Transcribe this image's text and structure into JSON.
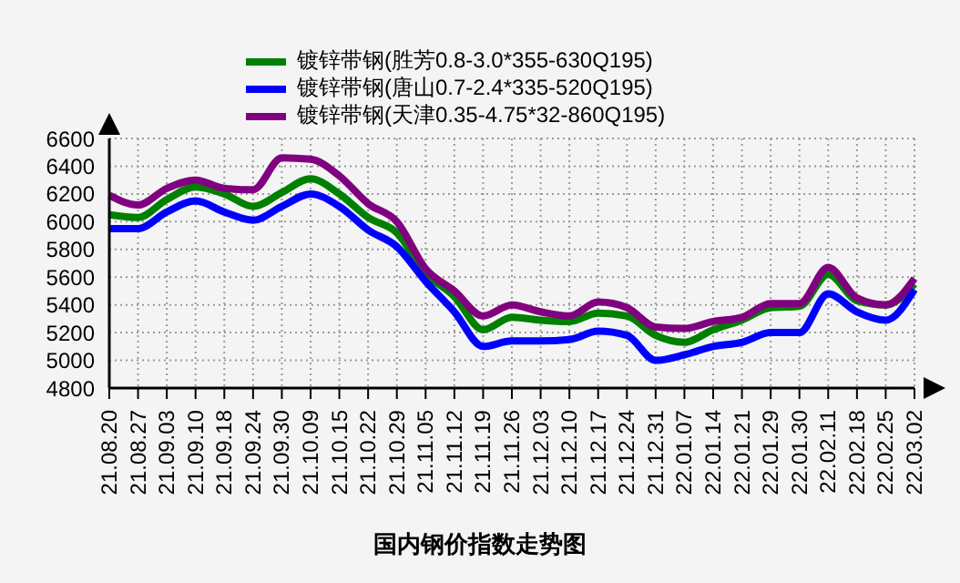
{
  "chart_data": {
    "type": "line",
    "title": "国内钢价指数走势图",
    "categories": [
      "21.08.20",
      "21.08.27",
      "21.09.03",
      "21.09.10",
      "21.09.18",
      "21.09.24",
      "21.09.30",
      "21.10.09",
      "21.10.15",
      "21.10.22",
      "21.10.29",
      "21.11.05",
      "21.11.12",
      "21.11.19",
      "21.11.26",
      "21.12.03",
      "21.12.10",
      "21.12.17",
      "21.12.24",
      "21.12.31",
      "22.01.07",
      "22.01.14",
      "22.01.21",
      "22.01.29",
      "22.01.30",
      "22.02.11",
      "22.02.18",
      "22.02.25",
      "22.03.02"
    ],
    "series": [
      {
        "name": "镀锌带钢(胜芳0.8-3.0*355-630Q195)",
        "color": "#008000",
        "values": [
          6050,
          6030,
          6160,
          6250,
          6200,
          6110,
          6210,
          6310,
          6200,
          6030,
          5920,
          5630,
          5460,
          5220,
          5310,
          5290,
          5280,
          5340,
          5320,
          5180,
          5130,
          5220,
          5290,
          5380,
          5390,
          5620,
          5430,
          5400,
          5550
        ]
      },
      {
        "name": "镀锌带钢(唐山0.7-2.4*335-520Q195)",
        "color": "#0000ff",
        "values": [
          5950,
          5950,
          6070,
          6150,
          6070,
          6010,
          6110,
          6200,
          6110,
          5940,
          5820,
          5570,
          5350,
          5100,
          5140,
          5140,
          5150,
          5210,
          5180,
          5000,
          5040,
          5100,
          5130,
          5200,
          5200,
          5480,
          5350,
          5290,
          5510
        ]
      },
      {
        "name": "镀锌带钢(天津0.35-4.75*32-860Q195)",
        "color": "#800080",
        "values": [
          6190,
          6120,
          6240,
          6300,
          6240,
          6230,
          6460,
          6450,
          6330,
          6130,
          6000,
          5660,
          5500,
          5320,
          5400,
          5350,
          5320,
          5420,
          5380,
          5240,
          5230,
          5280,
          5310,
          5410,
          5410,
          5670,
          5450,
          5400,
          5590
        ]
      }
    ],
    "ylim": [
      4800,
      6600
    ],
    "yticks": [
      4800,
      5000,
      5200,
      5400,
      5600,
      5800,
      6000,
      6200,
      6400,
      6600
    ],
    "grid": true,
    "legend": "top"
  }
}
